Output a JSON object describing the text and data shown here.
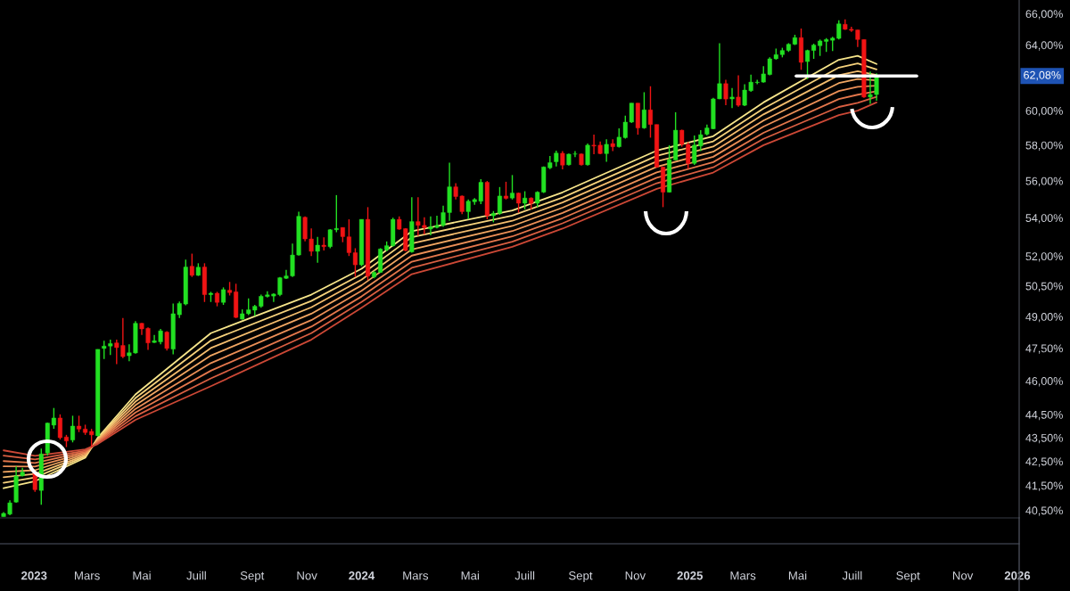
{
  "chart_data": {
    "type": "candlestick",
    "log": true,
    "grid": false,
    "xlim": [
      "2022-11-24",
      "2026-01-03"
    ],
    "xticks": [
      {
        "value": "2023-01-01",
        "label": "2023"
      },
      {
        "value": "2023-03-01",
        "label": "Mars"
      },
      {
        "value": "2023-05-01",
        "label": "Mai"
      },
      {
        "value": "2023-07-01",
        "label": "Juill"
      },
      {
        "value": "2023-09-01",
        "label": "Sept"
      },
      {
        "value": "2023-11-01",
        "label": "Nov"
      },
      {
        "value": "2024-01-01",
        "label": "2024"
      },
      {
        "value": "2024-03-01",
        "label": "Mars"
      },
      {
        "value": "2024-05-01",
        "label": "Mai"
      },
      {
        "value": "2024-07-01",
        "label": "Juill"
      },
      {
        "value": "2024-09-01",
        "label": "Sept"
      },
      {
        "value": "2024-11-01",
        "label": "Nov"
      },
      {
        "value": "2025-01-01",
        "label": "2025"
      },
      {
        "value": "2025-03-01",
        "label": "Mars"
      },
      {
        "value": "2025-05-01",
        "label": "Mai"
      },
      {
        "value": "2025-07-01",
        "label": "Juill"
      },
      {
        "value": "2025-09-01",
        "label": "Sept"
      },
      {
        "value": "2025-11-01",
        "label": "Nov"
      },
      {
        "value": "2026-01-01",
        "label": "2026"
      }
    ],
    "ylim": [
      40.2,
      66.9
    ],
    "yticks": [
      {
        "value": 40.5,
        "label": "40,50%"
      },
      {
        "value": 41.5,
        "label": "41,50%"
      },
      {
        "value": 42.5,
        "label": "42,50%"
      },
      {
        "value": 43.5,
        "label": "43,50%"
      },
      {
        "value": 44.5,
        "label": "44,50%"
      },
      {
        "value": 46,
        "label": "46,00%"
      },
      {
        "value": 47.5,
        "label": "47,50%"
      },
      {
        "value": 49,
        "label": "49,00%"
      },
      {
        "value": 50.5,
        "label": "50,50%"
      },
      {
        "value": 52,
        "label": "52,00%"
      },
      {
        "value": 54,
        "label": "54,00%"
      },
      {
        "value": 56,
        "label": "56,00%"
      },
      {
        "value": 58,
        "label": "58,00%"
      },
      {
        "value": 60,
        "label": "60,00%"
      },
      {
        "value": 64,
        "label": "64,00%"
      },
      {
        "value": 66,
        "label": "66,00%"
      }
    ],
    "ref_lines": [
      {
        "axis": "y",
        "value": 62.08,
        "label": "62,08%",
        "color": "#ffffff"
      }
    ],
    "colors": [
      "#22e022",
      "#22e022",
      "#22e022",
      "#22e022",
      "#f01414",
      "#22e022",
      "#22e022",
      "#22e022",
      "#f01414",
      "#f01414",
      "#22e022",
      "#f01414",
      "#f01414",
      "#f01414",
      "#22e022",
      "#22e022",
      "#22e022",
      "#f01414",
      "#f01414",
      "#22e022",
      "#22e022",
      "#f01414",
      "#f01414",
      "#22e022",
      "#22e022",
      "#f01414",
      "#22e022",
      "#22e022",
      "#22e022",
      "#f01414",
      "#22e022",
      "#f01414",
      "#22e022",
      "#f01414",
      "#22e022",
      "#f01414",
      "#f01414",
      "#22e022",
      "#22e022",
      "#22e022",
      "#22e022",
      "#22e022",
      "#22e022",
      "#22e022",
      "#22e022",
      "#22e022",
      "#22e022",
      "#f01414",
      "#f01414",
      "#22e022",
      "#f01414",
      "#22e022",
      "#22e022",
      "#f01414",
      "#f01414",
      "#f01414",
      "#22e022",
      "#f01414",
      "#22e022",
      "#22e022",
      "#22e022",
      "#22e022",
      "#f01414",
      "#f01414",
      "#22e022",
      "#f01414",
      "#f01414",
      "#22e022",
      "#22e022",
      "#22e022",
      "#22e022",
      "#f01414",
      "#f01414",
      "#22e022",
      "#22e022",
      "#22e022",
      "#f01414",
      "#22e022",
      "#22e022",
      "#f01414",
      "#22e022",
      "#f01414",
      "#22e022",
      "#f01414",
      "#22e022",
      "#22e022",
      "#22e022",
      "#22e022",
      "#f01414",
      "#22e022",
      "#22e022",
      "#f01414",
      "#22e022",
      "#f01414",
      "#f01414",
      "#22e022",
      "#f01414",
      "#22e022",
      "#22e022",
      "#22e022",
      "#f01414",
      "#22e022",
      "#f01414",
      "#f01414",
      "#f01414",
      "#22e022",
      "#22e022",
      "#f01414",
      "#f01414",
      "#22e022",
      "#22e022",
      "#22e022",
      "#22e022",
      "#22e022",
      "#f01414",
      "#22e022",
      "#f01414",
      "#22e022",
      "#22e022",
      "#22e022",
      "#22e022",
      "#22e022",
      "#22e022",
      "#22e022",
      "#22e022",
      "#22e022",
      "#f01414",
      "#22e022",
      "#22e022",
      "#22e022",
      "#22e022",
      "#22e022",
      "#22e022",
      "#f01414",
      "#f01414",
      "#f01414",
      "#f01414",
      "#22e022",
      "#22e022"
    ],
    "x": [
      "2022-11-28",
      "2022-12-05",
      "2022-12-12",
      "2022-12-19",
      "2023-01-02",
      "2023-01-09",
      "2023-01-16",
      "2023-01-23",
      "2023-01-30",
      "2023-02-06",
      "2023-02-13",
      "2023-02-20",
      "2023-02-27",
      "2023-03-06",
      "2023-03-13",
      "2023-03-20",
      "2023-03-27",
      "2023-04-03",
      "2023-04-10",
      "2023-04-17",
      "2023-04-24",
      "2023-05-01",
      "2023-05-08",
      "2023-05-15",
      "2023-05-22",
      "2023-05-29",
      "2023-06-05",
      "2023-06-12",
      "2023-06-19",
      "2023-06-26",
      "2023-07-03",
      "2023-07-10",
      "2023-07-17",
      "2023-07-24",
      "2023-07-31",
      "2023-08-07",
      "2023-08-14",
      "2023-08-21",
      "2023-08-28",
      "2023-09-04",
      "2023-09-11",
      "2023-09-18",
      "2023-09-25",
      "2023-10-02",
      "2023-10-09",
      "2023-10-16",
      "2023-10-23",
      "2023-10-30",
      "2023-11-06",
      "2023-11-13",
      "2023-11-20",
      "2023-11-27",
      "2023-12-04",
      "2023-12-11",
      "2023-12-18",
      "2023-12-25",
      "2024-01-01",
      "2024-01-08",
      "2024-01-15",
      "2024-01-22",
      "2024-01-29",
      "2024-02-05",
      "2024-02-12",
      "2024-02-19",
      "2024-02-26",
      "2024-03-04",
      "2024-03-11",
      "2024-03-18",
      "2024-03-25",
      "2024-04-01",
      "2024-04-08",
      "2024-04-15",
      "2024-04-22",
      "2024-04-29",
      "2024-05-06",
      "2024-05-13",
      "2024-05-20",
      "2024-05-27",
      "2024-06-03",
      "2024-06-10",
      "2024-06-17",
      "2024-06-24",
      "2024-07-01",
      "2024-07-08",
      "2024-07-15",
      "2024-07-22",
      "2024-07-29",
      "2024-08-05",
      "2024-08-12",
      "2024-08-19",
      "2024-08-26",
      "2024-09-02",
      "2024-09-09",
      "2024-09-16",
      "2024-09-23",
      "2024-09-30",
      "2024-10-07",
      "2024-10-14",
      "2024-10-21",
      "2024-10-28",
      "2024-11-04",
      "2024-11-11",
      "2024-11-18",
      "2024-11-25",
      "2024-12-02",
      "2024-12-09",
      "2024-12-16",
      "2024-12-23",
      "2024-12-30",
      "2025-01-06",
      "2025-01-13",
      "2025-01-20",
      "2025-01-27",
      "2025-02-03",
      "2025-02-10",
      "2025-02-17",
      "2025-02-24",
      "2025-03-03",
      "2025-03-10",
      "2025-03-17",
      "2025-03-24",
      "2025-03-31",
      "2025-04-07",
      "2025-04-14",
      "2025-04-21",
      "2025-04-28",
      "2025-05-05",
      "2025-05-12",
      "2025-05-19",
      "2025-05-26",
      "2025-06-02",
      "2025-06-09",
      "2025-06-16",
      "2025-06-23",
      "2025-06-30",
      "2025-07-07",
      "2025-07-14",
      "2025-07-21",
      "2025-07-28"
    ],
    "ohlc": [
      [
        40.25,
        40.43,
        40.25,
        40.38
      ],
      [
        40.35,
        40.9,
        40.31,
        40.8
      ],
      [
        40.83,
        42.29,
        40.8,
        41.89
      ],
      [
        41.9,
        42.23,
        41.87,
        42.05
      ],
      [
        42.05,
        42.08,
        41.24,
        41.33
      ],
      [
        41.3,
        43.04,
        40.72,
        42.81
      ],
      [
        42.85,
        44.15,
        42.74,
        44.13
      ],
      [
        44.04,
        44.79,
        43.88,
        44.35
      ],
      [
        44.35,
        44.51,
        43.42,
        43.5
      ],
      [
        43.53,
        43.62,
        43.1,
        43.36
      ],
      [
        43.4,
        44.45,
        43.3,
        44.0
      ],
      [
        44.0,
        44.45,
        43.74,
        43.87
      ],
      [
        43.87,
        44.06,
        43.62,
        43.72
      ],
      [
        43.77,
        43.88,
        43.1,
        43.62
      ],
      [
        43.58,
        47.45,
        43.55,
        47.45
      ],
      [
        47.49,
        47.85,
        47.0,
        47.6
      ],
      [
        47.6,
        47.9,
        47.18,
        47.72
      ],
      [
        47.75,
        47.9,
        46.76,
        47.53
      ],
      [
        47.63,
        48.93,
        47.04,
        47.11
      ],
      [
        47.15,
        47.68,
        46.9,
        47.29
      ],
      [
        47.28,
        48.78,
        47.25,
        48.68
      ],
      [
        48.68,
        48.7,
        48.12,
        48.41
      ],
      [
        48.44,
        48.48,
        47.42,
        47.75
      ],
      [
        47.77,
        48.12,
        47.75,
        47.85
      ],
      [
        47.8,
        48.41,
        47.68,
        48.32
      ],
      [
        48.26,
        48.3,
        47.39,
        47.49
      ],
      [
        47.46,
        49.64,
        47.22,
        49.14
      ],
      [
        49.09,
        49.73,
        48.93,
        49.64
      ],
      [
        49.61,
        51.82,
        49.55,
        51.45
      ],
      [
        51.49,
        52.13,
        50.95,
        51.03
      ],
      [
        51.03,
        51.64,
        51.0,
        51.44
      ],
      [
        51.45,
        51.64,
        49.71,
        50.07
      ],
      [
        50.07,
        50.21,
        49.71,
        50.14
      ],
      [
        50.14,
        50.21,
        49.5,
        49.69
      ],
      [
        49.69,
        50.43,
        49.57,
        50.32
      ],
      [
        50.29,
        50.7,
        50.03,
        50.17
      ],
      [
        50.21,
        50.61,
        48.93,
        48.96
      ],
      [
        48.88,
        49.35,
        48.85,
        49.14
      ],
      [
        49.14,
        49.89,
        49.07,
        49.33
      ],
      [
        49.31,
        49.57,
        49.03,
        49.5
      ],
      [
        49.5,
        50.07,
        49.43,
        49.99
      ],
      [
        49.98,
        50.24,
        49.93,
        50.06
      ],
      [
        50.0,
        50.14,
        49.71,
        50.1
      ],
      [
        50.07,
        50.95,
        50.0,
        50.91
      ],
      [
        50.88,
        51.3,
        50.85,
        51.0
      ],
      [
        51.0,
        52.65,
        50.95,
        52.06
      ],
      [
        52.06,
        54.33,
        52.03,
        54.08
      ],
      [
        54.03,
        54.08,
        52.76,
        52.89
      ],
      [
        52.89,
        53.44,
        52.01,
        52.25
      ],
      [
        52.25,
        53.0,
        51.67,
        52.57
      ],
      [
        52.57,
        52.97,
        52.29,
        52.49
      ],
      [
        52.49,
        53.4,
        52.41,
        53.37
      ],
      [
        53.37,
        55.22,
        53.24,
        53.44
      ],
      [
        53.49,
        53.49,
        52.72,
        53.01
      ],
      [
        53.0,
        53.92,
        52.01,
        52.18
      ],
      [
        52.18,
        52.41,
        50.95,
        51.56
      ],
      [
        51.56,
        53.92,
        51.49,
        53.92
      ],
      [
        53.92,
        54.57,
        50.8,
        50.99
      ],
      [
        50.95,
        51.26,
        50.88,
        51.18
      ],
      [
        51.18,
        52.41,
        51.15,
        52.37
      ],
      [
        52.33,
        52.76,
        52.25,
        52.54
      ],
      [
        52.54,
        54.0,
        52.49,
        53.92
      ],
      [
        53.92,
        54.08,
        53.37,
        53.4
      ],
      [
        53.43,
        53.45,
        52.25,
        52.29
      ],
      [
        52.22,
        55.11,
        52.18,
        53.8
      ],
      [
        53.8,
        55.11,
        53.05,
        53.6
      ],
      [
        53.6,
        54.03,
        53.13,
        53.48
      ],
      [
        53.41,
        54.08,
        53.08,
        53.52
      ],
      [
        53.49,
        54.11,
        53.44,
        53.6
      ],
      [
        53.6,
        54.65,
        53.52,
        54.28
      ],
      [
        54.28,
        57.01,
        53.84,
        55.67
      ],
      [
        55.67,
        55.87,
        54.98,
        55.14
      ],
      [
        55.17,
        55.2,
        54.2,
        54.33
      ],
      [
        54.33,
        54.98,
        53.92,
        54.89
      ],
      [
        54.86,
        55.06,
        54.69,
        54.98
      ],
      [
        54.89,
        56.09,
        54.73,
        55.92
      ],
      [
        55.92,
        55.99,
        53.92,
        54.11
      ],
      [
        54.11,
        54.36,
        53.76,
        54.24
      ],
      [
        54.24,
        55.66,
        54.16,
        55.17
      ],
      [
        55.17,
        55.95,
        54.98,
        55.04
      ],
      [
        55.06,
        56.32,
        54.98,
        55.33
      ],
      [
        55.33,
        55.36,
        54.28,
        54.78
      ],
      [
        54.78,
        55.43,
        54.45,
        55.06
      ],
      [
        55.06,
        55.1,
        54.45,
        54.77
      ],
      [
        54.78,
        55.43,
        54.57,
        55.38
      ],
      [
        55.38,
        56.8,
        55.33,
        56.77
      ],
      [
        56.72,
        57.38,
        56.65,
        57.01
      ],
      [
        57.06,
        57.69,
        56.8,
        57.55
      ],
      [
        57.54,
        57.66,
        56.63,
        56.87
      ],
      [
        56.89,
        57.52,
        56.85,
        57.49
      ],
      [
        57.49,
        57.66,
        57.32,
        57.5
      ],
      [
        57.5,
        57.52,
        56.85,
        56.89
      ],
      [
        56.89,
        58.09,
        56.85,
        58.0
      ],
      [
        58.0,
        58.6,
        57.49,
        57.95
      ],
      [
        58.0,
        58.21,
        57.49,
        57.52
      ],
      [
        57.52,
        58.34,
        57.06,
        58.05
      ],
      [
        58.09,
        58.34,
        57.66,
        57.91
      ],
      [
        57.91,
        58.97,
        57.86,
        58.46
      ],
      [
        58.43,
        59.71,
        58.38,
        59.33
      ],
      [
        59.33,
        60.45,
        59.28,
        60.45
      ],
      [
        60.45,
        60.45,
        58.6,
        58.99
      ],
      [
        58.99,
        61.1,
        58.94,
        60.05
      ],
      [
        60.05,
        61.46,
        58.43,
        59.19
      ],
      [
        59.19,
        59.19,
        56.72,
        56.77
      ],
      [
        56.77,
        56.77,
        54.57,
        55.38
      ],
      [
        55.38,
        58.0,
        55.36,
        57.18
      ],
      [
        57.16,
        59.91,
        57.16,
        58.86
      ],
      [
        58.86,
        58.89,
        57.91,
        58.04
      ],
      [
        58.04,
        58.17,
        56.67,
        56.97
      ],
      [
        56.97,
        58.56,
        56.89,
        58.0
      ],
      [
        57.95,
        58.86,
        57.66,
        58.6
      ],
      [
        58.63,
        59.19,
        58.56,
        58.99
      ],
      [
        58.94,
        60.77,
        58.91,
        60.7
      ],
      [
        60.7,
        64.11,
        60.68,
        61.62
      ],
      [
        61.62,
        61.85,
        60.32,
        60.69
      ],
      [
        60.7,
        61.35,
        60.16,
        60.81
      ],
      [
        60.81,
        62.12,
        60.23,
        60.32
      ],
      [
        60.32,
        61.58,
        60.27,
        61.23
      ],
      [
        61.19,
        62.17,
        61.13,
        61.71
      ],
      [
        61.68,
        61.85,
        61.58,
        61.71
      ],
      [
        61.71,
        62.68,
        61.68,
        62.21
      ],
      [
        62.17,
        63.23,
        62.12,
        63.14
      ],
      [
        63.14,
        63.78,
        63.09,
        63.4
      ],
      [
        63.4,
        63.83,
        63.23,
        63.66
      ],
      [
        63.66,
        64.12,
        63.57,
        64.05
      ],
      [
        64.05,
        64.65,
        64.0,
        64.47
      ],
      [
        64.47,
        65.05,
        62.46,
        62.92
      ],
      [
        62.97,
        63.71,
        61.89,
        63.66
      ],
      [
        63.66,
        64.09,
        63.14,
        64.0
      ],
      [
        63.96,
        64.35,
        63.32,
        64.26
      ],
      [
        64.23,
        64.44,
        63.57,
        64.35
      ],
      [
        64.3,
        64.53,
        63.62,
        64.44
      ],
      [
        64.42,
        65.58,
        64.35,
        65.35
      ],
      [
        65.32,
        65.63,
        64.96,
        65.0
      ],
      [
        65.0,
        65.17,
        64.83,
        64.93
      ],
      [
        64.96,
        64.96,
        63.88,
        64.35
      ],
      [
        64.35,
        64.35,
        60.77,
        60.81
      ],
      [
        60.81,
        62.35,
        60.41,
        60.96
      ],
      [
        60.96,
        62.25,
        60.59,
        62.08
      ]
    ],
    "series": [
      {
        "type": "line",
        "color": "#f7e58a",
        "x": [
          "2022-11-28",
          "2023-01-02",
          "2023-02-27",
          "2023-03-13",
          "2023-04-24",
          "2023-07-17",
          "2023-11-06",
          "2024-01-01",
          "2024-02-26",
          "2024-06-17",
          "2024-08-12",
          "2024-11-25",
          "2025-01-27",
          "2025-03-24",
          "2025-06-16",
          "2025-07-07",
          "2025-07-28"
        ],
        "values": [
          41.39,
          41.68,
          42.65,
          43.5,
          45.39,
          48.21,
          50.07,
          51.36,
          53.29,
          54.39,
          55.37,
          57.69,
          58.51,
          60.49,
          63.08,
          63.33,
          62.82
        ]
      },
      {
        "type": "line",
        "color": "#f6d27c",
        "x": [
          "2022-11-28",
          "2023-01-02",
          "2023-02-27",
          "2023-03-13",
          "2023-04-24",
          "2023-07-17",
          "2023-11-06",
          "2024-01-01",
          "2024-02-26",
          "2024-06-17",
          "2024-08-12",
          "2024-11-25",
          "2025-01-27",
          "2025-03-24",
          "2025-06-16",
          "2025-07-07",
          "2025-07-28"
        ],
        "values": [
          41.61,
          41.83,
          42.7,
          43.46,
          45.23,
          47.86,
          49.76,
          51.08,
          52.98,
          54.12,
          55.09,
          57.39,
          58.22,
          60.13,
          62.6,
          62.85,
          62.49
        ]
      },
      {
        "type": "line",
        "color": "#f4bd6e",
        "x": [
          "2022-11-28",
          "2023-01-02",
          "2023-02-27",
          "2023-03-13",
          "2023-04-24",
          "2023-07-17",
          "2023-11-06",
          "2024-01-01",
          "2024-02-26",
          "2024-06-17",
          "2024-08-12",
          "2024-11-25",
          "2025-01-27",
          "2025-03-24",
          "2025-06-16",
          "2025-07-07",
          "2025-07-28"
        ],
        "values": [
          41.84,
          41.98,
          42.75,
          43.42,
          45.07,
          47.51,
          49.45,
          50.81,
          52.66,
          53.84,
          54.82,
          57.08,
          57.92,
          59.78,
          62.13,
          62.38,
          62.15
        ]
      },
      {
        "type": "line",
        "color": "#f1a662",
        "x": [
          "2022-11-28",
          "2023-01-02",
          "2023-02-27",
          "2023-03-13",
          "2023-04-24",
          "2023-07-17",
          "2023-11-06",
          "2024-01-01",
          "2024-02-26",
          "2024-06-17",
          "2024-08-12",
          "2024-11-25",
          "2025-01-27",
          "2025-03-24",
          "2025-06-16",
          "2025-07-07",
          "2025-07-28"
        ],
        "values": [
          42.06,
          42.13,
          42.8,
          43.38,
          44.91,
          47.16,
          49.14,
          50.53,
          52.35,
          53.57,
          54.54,
          56.78,
          57.63,
          59.42,
          61.65,
          61.9,
          61.82
        ]
      },
      {
        "type": "line",
        "color": "#ec8f57",
        "x": [
          "2022-11-28",
          "2023-01-02",
          "2023-02-27",
          "2023-03-13",
          "2023-04-24",
          "2023-07-17",
          "2023-11-06",
          "2024-01-01",
          "2024-02-26",
          "2024-06-17",
          "2024-08-12",
          "2024-11-25",
          "2025-01-27",
          "2025-03-24",
          "2025-06-16",
          "2025-07-07",
          "2025-07-28"
        ],
        "values": [
          42.29,
          42.28,
          42.85,
          43.35,
          44.75,
          46.81,
          48.83,
          50.26,
          52.03,
          53.3,
          54.26,
          56.47,
          57.34,
          59.07,
          61.17,
          61.43,
          61.49
        ]
      },
      {
        "type": "line",
        "color": "#e4774c",
        "x": [
          "2022-11-28",
          "2023-01-02",
          "2023-02-27",
          "2023-03-13",
          "2023-04-24",
          "2023-07-17",
          "2023-11-06",
          "2024-01-01",
          "2024-02-26",
          "2024-06-17",
          "2024-08-12",
          "2024-11-25",
          "2025-01-27",
          "2025-03-24",
          "2025-06-16",
          "2025-07-07",
          "2025-07-28"
        ],
        "values": [
          42.51,
          42.43,
          42.9,
          43.31,
          44.59,
          46.46,
          48.52,
          49.98,
          51.72,
          53.02,
          53.98,
          56.17,
          57.04,
          58.71,
          60.69,
          60.95,
          61.16
        ]
      },
      {
        "type": "line",
        "color": "#d95f42",
        "x": [
          "2022-11-28",
          "2023-01-02",
          "2023-02-27",
          "2023-03-13",
          "2023-04-24",
          "2023-07-17",
          "2023-11-06",
          "2024-01-01",
          "2024-02-26",
          "2024-06-17",
          "2024-08-12",
          "2024-11-25",
          "2025-01-27",
          "2025-03-24",
          "2025-06-16",
          "2025-07-07",
          "2025-07-28"
        ],
        "values": [
          42.74,
          42.58,
          42.95,
          43.27,
          44.43,
          46.11,
          48.21,
          49.71,
          51.41,
          52.75,
          53.71,
          55.87,
          56.75,
          58.36,
          60.22,
          60.47,
          60.82
        ]
      },
      {
        "type": "line",
        "color": "#cc4836",
        "x": [
          "2022-11-28",
          "2023-01-02",
          "2023-02-27",
          "2023-03-13",
          "2023-04-24",
          "2023-07-17",
          "2023-11-06",
          "2024-01-01",
          "2024-02-26",
          "2024-06-17",
          "2024-08-12",
          "2024-11-25",
          "2025-01-27",
          "2025-03-24",
          "2025-06-16",
          "2025-07-07",
          "2025-07-28"
        ],
        "values": [
          42.96,
          42.73,
          43.0,
          43.23,
          44.27,
          45.76,
          47.9,
          49.43,
          51.09,
          52.48,
          53.43,
          55.56,
          56.46,
          58.0,
          59.74,
          60.0,
          60.49
        ]
      }
    ]
  }
}
